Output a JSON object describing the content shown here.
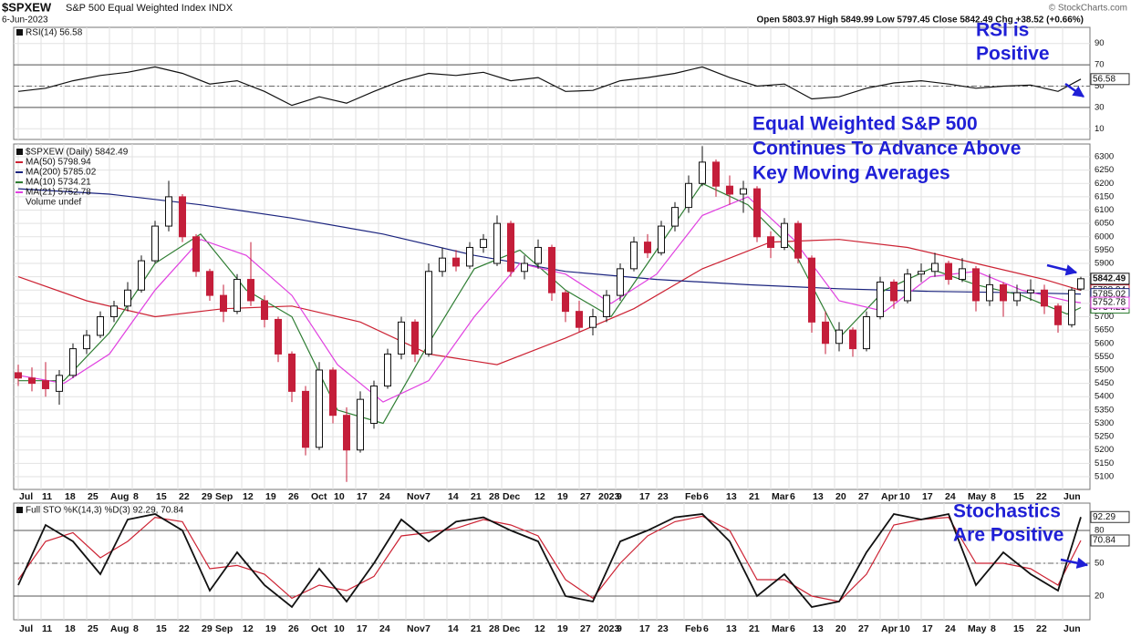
{
  "header": {
    "ticker": "$SPXEW",
    "name": "S&P 500 Equal Weighted Index INDX",
    "date": "6-Jun-2023",
    "quote": "Open 5803.97 High 5849.99 Low 5797.45 Close 5842.49 Chg +38.52 (+0.66%)",
    "source": "© StockCharts.com"
  },
  "chart_data": [
    {
      "type": "line",
      "title": "RSI(14) 56.58",
      "color": "#111111",
      "x": [
        0,
        6,
        12,
        18,
        24,
        30,
        36,
        42,
        48,
        54,
        60,
        66,
        72,
        78,
        84,
        90,
        96,
        102,
        108,
        114,
        120,
        126,
        132,
        138,
        144,
        150,
        156,
        162,
        168,
        174,
        180,
        186,
        192,
        198,
        204,
        210,
        216,
        222,
        228,
        233
      ],
      "series": [
        {
          "color": "#111111",
          "values": [
            45,
            48,
            55,
            60,
            63,
            68,
            62,
            52,
            55,
            45,
            32,
            40,
            34,
            45,
            55,
            62,
            60,
            63,
            55,
            58,
            45,
            46,
            55,
            58,
            62,
            68,
            58,
            50,
            52,
            38,
            40,
            48,
            53,
            55,
            52,
            48,
            50,
            51,
            45,
            56.58
          ]
        }
      ],
      "ylim": [
        0,
        100
      ],
      "yticks": [
        90,
        70,
        50,
        30,
        10
      ],
      "reference_lines": [
        70,
        30
      ],
      "midline": 50,
      "grid": true,
      "annotation": [
        "RSI is",
        "Positive"
      ]
    },
    {
      "type": "candlestick",
      "title": "$SPXEW (Daily) 5842.49",
      "x": [
        0,
        3,
        6,
        9,
        12,
        15,
        18,
        21,
        24,
        27,
        30,
        33,
        36,
        39,
        42,
        45,
        48,
        51,
        54,
        57,
        60,
        63,
        66,
        69,
        72,
        75,
        78,
        81,
        84,
        87,
        90,
        93,
        96,
        99,
        102,
        105,
        108,
        111,
        114,
        117,
        120,
        123,
        126,
        129,
        132,
        135,
        138,
        141,
        144,
        147,
        150,
        153,
        156,
        159,
        162,
        165,
        168,
        171,
        174,
        177,
        180,
        183,
        186,
        189,
        192,
        195,
        198,
        201,
        204,
        207,
        210,
        213,
        216,
        219,
        222,
        225,
        228,
        231,
        233
      ],
      "open": [
        5490,
        5470,
        5460,
        5420,
        5480,
        5580,
        5630,
        5700,
        5740,
        5800,
        5910,
        6040,
        6150,
        6000,
        5870,
        5780,
        5720,
        5840,
        5760,
        5690,
        5560,
        5420,
        5210,
        5500,
        5330,
        5200,
        5300,
        5440,
        5560,
        5680,
        5560,
        5870,
        5920,
        5890,
        5960,
        5900,
        6050,
        5870,
        5900,
        5960,
        5790,
        5720,
        5660,
        5700,
        5780,
        5880,
        5980,
        5940,
        6040,
        6110,
        6200,
        6280,
        6190,
        6160,
        6180,
        6000,
        5960,
        6050,
        5920,
        5680,
        5600,
        5650,
        5580,
        5700,
        5830,
        5760,
        5860,
        5870,
        5900,
        5840,
        5880,
        5760,
        5820,
        5760,
        5790,
        5800,
        5740,
        5670,
        5803.97
      ],
      "high": [
        5520,
        5510,
        5530,
        5500,
        5600,
        5650,
        5720,
        5760,
        5830,
        5930,
        6060,
        6210,
        6160,
        6010,
        5880,
        5820,
        5860,
        5980,
        5780,
        5700,
        5570,
        5440,
        5530,
        5510,
        5360,
        5420,
        5460,
        5580,
        5700,
        5690,
        5900,
        5960,
        5950,
        5980,
        6010,
        6080,
        6060,
        5930,
        5990,
        5970,
        5800,
        5760,
        5730,
        5800,
        5900,
        6000,
        6010,
        6060,
        6130,
        6230,
        6340,
        6290,
        6230,
        6210,
        6190,
        6020,
        6070,
        6060,
        5930,
        5720,
        5680,
        5660,
        5720,
        5850,
        5840,
        5880,
        5900,
        5940,
        5910,
        5920,
        5890,
        5860,
        5830,
        5820,
        5840,
        5820,
        5750,
        5810,
        5849.99
      ],
      "low": [
        5440,
        5420,
        5400,
        5370,
        5470,
        5560,
        5620,
        5680,
        5720,
        5790,
        5900,
        6020,
        5980,
        5850,
        5760,
        5680,
        5710,
        5740,
        5660,
        5530,
        5380,
        5180,
        5200,
        5300,
        5080,
        5190,
        5280,
        5430,
        5540,
        5530,
        5550,
        5850,
        5870,
        5880,
        5940,
        5890,
        5850,
        5840,
        5880,
        5760,
        5680,
        5640,
        5630,
        5680,
        5760,
        5870,
        5920,
        5930,
        6020,
        6090,
        6190,
        6150,
        6120,
        6090,
        5980,
        5920,
        5950,
        5900,
        5640,
        5560,
        5570,
        5550,
        5570,
        5690,
        5730,
        5750,
        5830,
        5850,
        5820,
        5830,
        5720,
        5740,
        5700,
        5740,
        5760,
        5710,
        5640,
        5660,
        5797.45
      ],
      "close": [
        5470,
        5450,
        5430,
        5480,
        5580,
        5630,
        5700,
        5740,
        5800,
        5910,
        6040,
        6150,
        6000,
        5870,
        5780,
        5720,
        5840,
        5760,
        5690,
        5560,
        5420,
        5210,
        5500,
        5330,
        5200,
        5390,
        5440,
        5560,
        5680,
        5560,
        5870,
        5920,
        5890,
        5960,
        5990,
        6050,
        5870,
        5900,
        5960,
        5790,
        5720,
        5660,
        5700,
        5780,
        5880,
        5980,
        5940,
        6040,
        6110,
        6200,
        6280,
        6190,
        6160,
        6180,
        6000,
        5960,
        6050,
        5920,
        5680,
        5600,
        5650,
        5580,
        5700,
        5830,
        5760,
        5860,
        5870,
        5900,
        5840,
        5880,
        5760,
        5820,
        5760,
        5790,
        5800,
        5740,
        5670,
        5800,
        5842.49
      ],
      "up_color": "#ffffff",
      "down_color": "#c41e3a",
      "series": [
        {
          "name": "MA(50) 5798.94",
          "color": "#cc2233",
          "x": [
            0,
            15,
            30,
            45,
            60,
            75,
            90,
            105,
            120,
            135,
            150,
            165,
            180,
            195,
            210,
            225,
            233
          ],
          "values": [
            5850,
            5760,
            5700,
            5730,
            5740,
            5680,
            5560,
            5520,
            5620,
            5730,
            5880,
            5980,
            5990,
            5960,
            5900,
            5840,
            5798.94
          ]
        },
        {
          "name": "MA(200) 5785.02",
          "color": "#1a237e",
          "x": [
            0,
            20,
            40,
            60,
            80,
            100,
            120,
            140,
            160,
            180,
            200,
            220,
            233
          ],
          "values": [
            6180,
            6160,
            6120,
            6070,
            6010,
            5930,
            5870,
            5840,
            5820,
            5805,
            5795,
            5790,
            5785.02
          ]
        },
        {
          "name": "MA(10) 5734.21",
          "color": "#2e7d32",
          "x": [
            0,
            10,
            20,
            30,
            40,
            50,
            60,
            70,
            80,
            90,
            100,
            110,
            120,
            130,
            140,
            150,
            160,
            170,
            180,
            190,
            200,
            210,
            220,
            230,
            233
          ],
          "values": [
            5460,
            5460,
            5640,
            5900,
            6010,
            5800,
            5700,
            5350,
            5300,
            5600,
            5880,
            5950,
            5800,
            5700,
            5950,
            6200,
            6120,
            5950,
            5620,
            5800,
            5880,
            5820,
            5780,
            5710,
            5734.21
          ]
        },
        {
          "name": "MA(21) 5752.78",
          "color": "#e040e0",
          "x": [
            0,
            10,
            20,
            30,
            40,
            50,
            60,
            70,
            80,
            90,
            100,
            110,
            120,
            130,
            140,
            150,
            160,
            170,
            180,
            190,
            200,
            210,
            220,
            230,
            233
          ],
          "values": [
            5480,
            5450,
            5560,
            5800,
            5990,
            5930,
            5780,
            5520,
            5380,
            5460,
            5700,
            5900,
            5860,
            5750,
            5860,
            6080,
            6150,
            5990,
            5760,
            5720,
            5850,
            5870,
            5800,
            5760,
            5752.78
          ]
        }
      ],
      "notes": [
        "Volume undef"
      ],
      "ylim": [
        5052,
        6348
      ],
      "yticks": [
        5100,
        5150,
        5200,
        5250,
        5300,
        5350,
        5400,
        5450,
        5500,
        5550,
        5600,
        5650,
        5700,
        5750,
        5800,
        5850,
        5900,
        5950,
        6000,
        6050,
        6100,
        6150,
        6200,
        6250,
        6300
      ],
      "xlim": [
        -1,
        235
      ],
      "xticks": [
        {
          "value": 0,
          "label": "Jul"
        },
        {
          "value": 5,
          "label": "11"
        },
        {
          "value": 10,
          "label": "18"
        },
        {
          "value": 15,
          "label": "25"
        },
        {
          "value": 20,
          "label": "Aug"
        },
        {
          "value": 25,
          "label": "8"
        },
        {
          "value": 30,
          "label": "15"
        },
        {
          "value": 35,
          "label": "22"
        },
        {
          "value": 40,
          "label": "29"
        },
        {
          "value": 43,
          "label": "Sep"
        },
        {
          "value": 49,
          "label": "12"
        },
        {
          "value": 54,
          "label": "19"
        },
        {
          "value": 59,
          "label": "26"
        },
        {
          "value": 64,
          "label": "Oct"
        },
        {
          "value": 69,
          "label": "10"
        },
        {
          "value": 74,
          "label": "17"
        },
        {
          "value": 79,
          "label": "24"
        },
        {
          "value": 85,
          "label": "Nov"
        },
        {
          "value": 89,
          "label": "7"
        },
        {
          "value": 94,
          "label": "14"
        },
        {
          "value": 99,
          "label": "21"
        },
        {
          "value": 103,
          "label": "28"
        },
        {
          "value": 106,
          "label": "Dec"
        },
        {
          "value": 113,
          "label": "12"
        },
        {
          "value": 118,
          "label": "19"
        },
        {
          "value": 123,
          "label": "27"
        },
        {
          "value": 127,
          "label": "2023"
        },
        {
          "value": 131,
          "label": "9"
        },
        {
          "value": 136,
          "label": "17"
        },
        {
          "value": 140,
          "label": "23"
        },
        {
          "value": 146,
          "label": "Feb"
        },
        {
          "value": 150,
          "label": "6"
        },
        {
          "value": 155,
          "label": "13"
        },
        {
          "value": 160,
          "label": "21"
        },
        {
          "value": 165,
          "label": "Mar"
        },
        {
          "value": 169,
          "label": "6"
        },
        {
          "value": 174,
          "label": "13"
        },
        {
          "value": 179,
          "label": "20"
        },
        {
          "value": 184,
          "label": "27"
        },
        {
          "value": 189,
          "label": "Apr"
        },
        {
          "value": 193,
          "label": "10"
        },
        {
          "value": 198,
          "label": "17"
        },
        {
          "value": 203,
          "label": "24"
        },
        {
          "value": 208,
          "label": "May"
        },
        {
          "value": 213,
          "label": "8"
        },
        {
          "value": 218,
          "label": "15"
        },
        {
          "value": 223,
          "label": "22"
        },
        {
          "value": 229,
          "label": "Jun"
        }
      ],
      "grid": true,
      "annotation": [
        "Equal Weighted S&P 500",
        "Continues To Advance Above",
        "Key Moving Averages"
      ]
    },
    {
      "type": "line",
      "title": "Full STO %K(14,3) %D(3) 92.29, 70.84",
      "x": [
        0,
        6,
        12,
        18,
        24,
        30,
        36,
        42,
        48,
        54,
        60,
        66,
        72,
        78,
        84,
        90,
        96,
        102,
        108,
        114,
        120,
        126,
        132,
        138,
        144,
        150,
        156,
        162,
        168,
        174,
        180,
        186,
        192,
        198,
        204,
        210,
        216,
        222,
        228,
        233
      ],
      "series": [
        {
          "color": "#cc2233",
          "values": [
            35,
            70,
            78,
            55,
            70,
            92,
            88,
            45,
            48,
            40,
            18,
            30,
            25,
            38,
            75,
            78,
            82,
            90,
            85,
            75,
            35,
            18,
            50,
            75,
            88,
            93,
            80,
            35,
            35,
            20,
            15,
            40,
            85,
            90,
            92,
            50,
            50,
            45,
            30,
            70.84
          ]
        },
        {
          "color": "#111111",
          "values": [
            30,
            85,
            70,
            40,
            90,
            95,
            80,
            25,
            60,
            30,
            10,
            45,
            15,
            50,
            90,
            70,
            88,
            92,
            80,
            70,
            20,
            15,
            70,
            80,
            92,
            95,
            70,
            20,
            40,
            10,
            15,
            60,
            95,
            90,
            95,
            30,
            60,
            40,
            25,
            92.29
          ]
        }
      ],
      "ylim": [
        0,
        100
      ],
      "yticks": [
        80,
        50,
        20
      ],
      "reference_lines": [
        80,
        20
      ],
      "midline": 50,
      "grid": true,
      "annotation": [
        "Stochastics",
        "Are Positive"
      ]
    }
  ]
}
